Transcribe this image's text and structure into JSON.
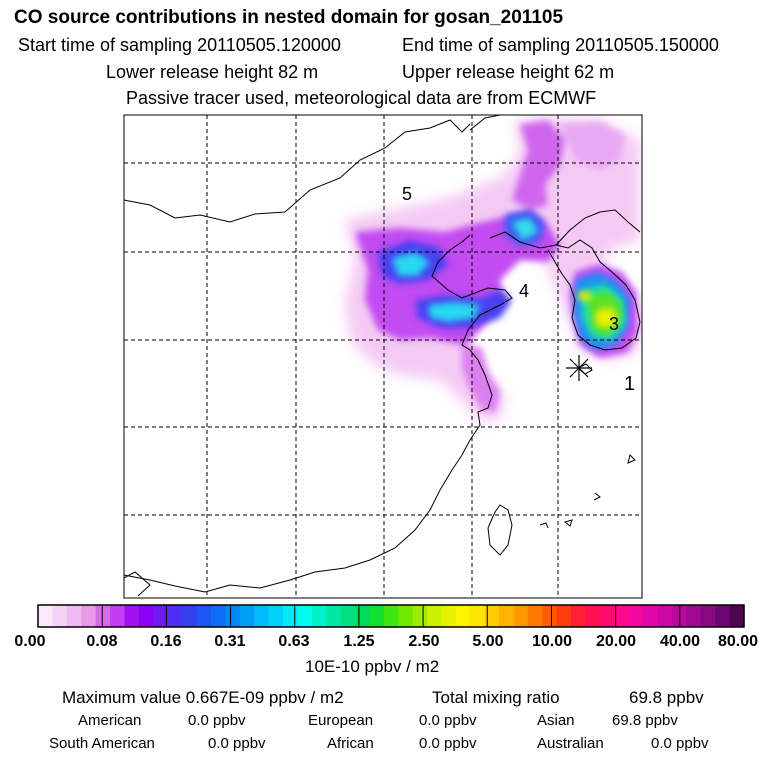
{
  "header": {
    "title": "CO  source contributions in nested domain for gosan_201105",
    "start_label": "Start time of sampling 20110505.120000",
    "end_label": "End time of sampling 20110505.150000",
    "lower_label": "Lower release height   82 m",
    "upper_label": "Upper release height   62 m",
    "tracer_note": "Passive tracer used, meteorological data are from ECMWF"
  },
  "map": {
    "region_labels": {
      "r1": "1",
      "r3": "3",
      "r4": "4",
      "r5": "5"
    }
  },
  "colorbar": {
    "ticks": [
      "0.00",
      "0.08",
      "0.16",
      "0.31",
      "0.63",
      "1.25",
      "2.50",
      "5.00",
      "10.00",
      "20.00",
      "40.00",
      "80.00"
    ],
    "units": "10E-10 ppbv / m2",
    "colors": [
      "#fbe8fb",
      "#f6d2f6",
      "#f0b8f0",
      "#e89ae8",
      "#d76ae8",
      "#c23ef0",
      "#a410f0",
      "#8c00f4",
      "#6c1cf0",
      "#4b30f4",
      "#3440f0",
      "#1c56f4",
      "#0c6ef4",
      "#0088f6",
      "#00a0f8",
      "#00bafa",
      "#00d2fa",
      "#00eafa",
      "#00fcf0",
      "#00f0c8",
      "#00e8a4",
      "#00e080",
      "#00dc5a",
      "#10e030",
      "#40e410",
      "#70e800",
      "#a0ec00",
      "#c8f000",
      "#e8f200",
      "#fff400",
      "#ffe400",
      "#ffcc00",
      "#ffb400",
      "#ff9a00",
      "#ff7a00",
      "#ff5a00",
      "#ff3c10",
      "#ff2030",
      "#ff1050",
      "#ff0870",
      "#ff0890",
      "#f008a0",
      "#e008a8",
      "#cc08a4",
      "#b8089c",
      "#a00890",
      "#880880",
      "#6e0670",
      "#500450"
    ]
  },
  "stats": {
    "max_label": "Maximum value  0.667E-09 ppbv / m2",
    "total_label": "Total mixing ratio",
    "total_value": "69.8 ppbv"
  },
  "regions": [
    {
      "name": "American",
      "value": "0.0 ppbv"
    },
    {
      "name": "European",
      "value": "0.0 ppbv"
    },
    {
      "name": "Asian",
      "value": "69.8 ppbv"
    },
    {
      "name": "South American",
      "value": "0.0 ppbv"
    },
    {
      "name": "African",
      "value": "0.0 ppbv"
    },
    {
      "name": "Australian",
      "value": "0.0 ppbv"
    }
  ]
}
